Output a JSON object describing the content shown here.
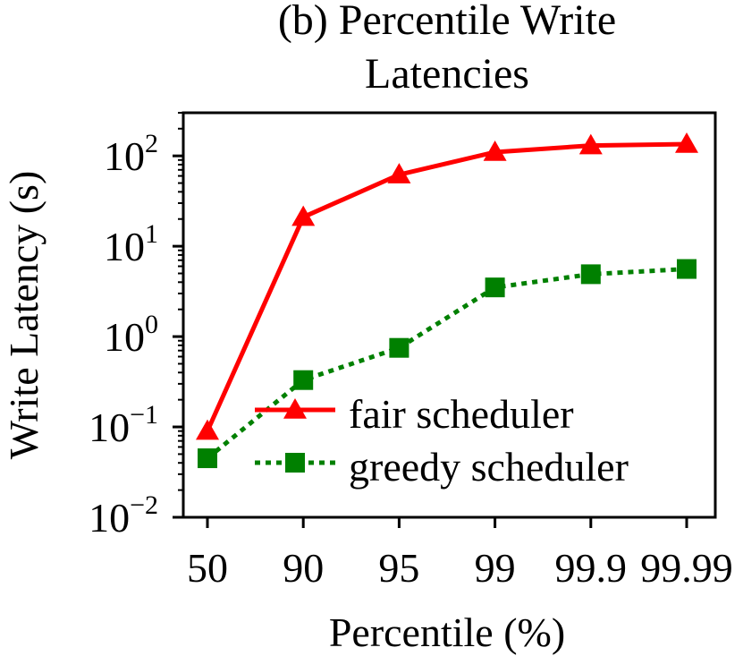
{
  "chart_data": {
    "type": "line",
    "title": "(b) Percentile Write\nLatencies",
    "title_lines": [
      "(b) Percentile Write",
      "Latencies"
    ],
    "xlabel": "Percentile (%)",
    "ylabel": "Write Latency (s)",
    "categories": [
      "50",
      "90",
      "95",
      "99",
      "99.9",
      "99.99"
    ],
    "y_scale": "log",
    "ylim": [
      0.01,
      300
    ],
    "y_ticks": [
      {
        "value": 0.01,
        "base": "10",
        "exp": "−2"
      },
      {
        "value": 0.1,
        "base": "10",
        "exp": "−1"
      },
      {
        "value": 1,
        "base": "10",
        "exp": "0"
      },
      {
        "value": 10,
        "base": "10",
        "exp": "1"
      },
      {
        "value": 100,
        "base": "10",
        "exp": "2"
      }
    ],
    "grid": false,
    "legend_position": "lower-right",
    "series": [
      {
        "name": "fair scheduler",
        "color": "#ff0000",
        "line_style": "solid",
        "marker": "triangle",
        "values": [
          0.09,
          21,
          62,
          110,
          130,
          135
        ]
      },
      {
        "name": "greedy scheduler",
        "color": "#008000",
        "line_style": "dotted",
        "marker": "square",
        "values": [
          0.045,
          0.33,
          0.75,
          3.5,
          4.9,
          5.6
        ]
      }
    ]
  }
}
